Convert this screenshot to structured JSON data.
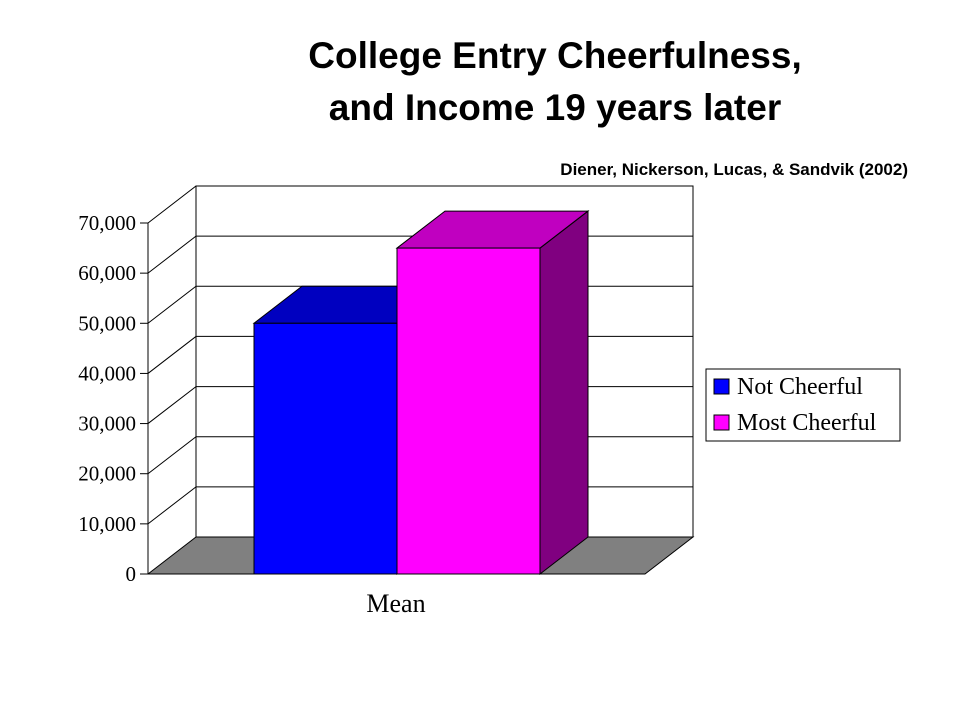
{
  "chart_data": {
    "type": "bar",
    "title_lines": [
      "College Entry Cheerfulness,",
      "and Income 19 years later"
    ],
    "subtitle": "Diener, Nickerson, Lucas, & Sandvik (2002)",
    "categories": [
      "Mean"
    ],
    "series": [
      {
        "name": "Not Cheerful",
        "values": [
          50000
        ],
        "color": "#0000ff",
        "top_color": "#0000c0",
        "side_color": "#000080"
      },
      {
        "name": "Most Cheerful",
        "values": [
          65000
        ],
        "color": "#ff00ff",
        "top_color": "#c000c0",
        "side_color": "#800080"
      }
    ],
    "y_ticks": [
      "0",
      "10,000",
      "20,000",
      "30,000",
      "40,000",
      "50,000",
      "60,000",
      "70,000"
    ],
    "ylim": [
      0,
      70000
    ],
    "grid": true,
    "three_d": true,
    "legend_position": "right",
    "floor_color": "#808080"
  }
}
